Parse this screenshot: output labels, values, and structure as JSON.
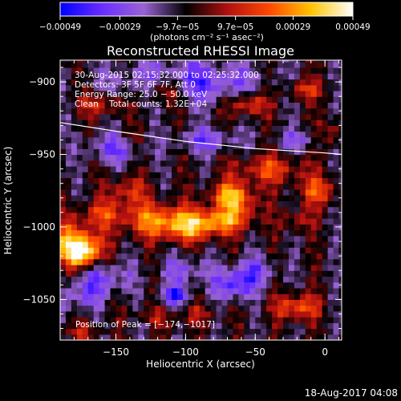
{
  "chart_data": {
    "type": "heatmap",
    "title": "Reconstructed RHESSI Image",
    "xlabel": "Heliocentric X (arcsec)",
    "ylabel": "Heliocentric Y (arcsec)",
    "xlim": [
      -190,
      12
    ],
    "ylim": [
      -1078,
      -885
    ],
    "x_ticks": [
      -150,
      -100,
      -50,
      0
    ],
    "x_tick_labels": [
      "−150",
      "−100",
      "−50",
      "0"
    ],
    "y_ticks": [
      -900,
      -950,
      -1000,
      -1050
    ],
    "y_tick_labels": [
      "−900",
      "−950",
      "−1000",
      "−1050"
    ],
    "colorbar": {
      "range": [
        -0.00049,
        0.00049
      ],
      "ticks": [
        -0.00049,
        -0.00029,
        -9.7e-05,
        9.7e-05,
        0.00029,
        0.00049
      ],
      "tick_labels": [
        "−0.00049",
        "−0.00029",
        "−9.7e−05",
        "9.7e−05",
        "0.00029",
        "0.00049"
      ],
      "units": "(photons cm⁻² s⁻¹ asec⁻²)",
      "colors": [
        "#0000ff",
        "#6a2dff",
        "#9a63d4",
        "#000000",
        "#b01010",
        "#ff4800",
        "#ffc400",
        "#ffffff"
      ]
    },
    "annotations": [
      "30‑Aug‑2015 02:15:32.000 to 02:25:32.000",
      "Detectors: 3F 5F 6F 7F, Att 0",
      "Energy Range: 25.0 − 50.0 keV",
      "Clean    Total counts: 1.32E+04"
    ],
    "peak_label": "Position of Peak = [−174,−1017]",
    "peak": {
      "x": -174,
      "y": -1017
    },
    "limb_curve": {
      "x": [
        -190,
        -150,
        -100,
        -50,
        0,
        12
      ],
      "y": [
        -928,
        -934,
        -941,
        -946,
        -949,
        -950
      ]
    },
    "hot_regions": [
      {
        "x": -174,
        "y": -1017,
        "w": 12,
        "h": 10,
        "v": 0.00049
      },
      {
        "x": -182,
        "y": -1010,
        "w": 20,
        "h": 16,
        "v": 0.0003
      },
      {
        "x": -120,
        "y": -995,
        "w": 28,
        "h": 12,
        "v": 0.00032
      },
      {
        "x": -95,
        "y": -1000,
        "w": 22,
        "h": 10,
        "v": 0.00028
      },
      {
        "x": -75,
        "y": -995,
        "w": 18,
        "h": 8,
        "v": 0.00025
      },
      {
        "x": -60,
        "y": -985,
        "w": 14,
        "h": 14,
        "v": 0.00022
      },
      {
        "x": -70,
        "y": -978,
        "w": 14,
        "h": 9,
        "v": 0.0003
      },
      {
        "x": -142,
        "y": -975,
        "w": 14,
        "h": 10,
        "v": 0.00022
      },
      {
        "x": -160,
        "y": -990,
        "w": 16,
        "h": 8,
        "v": 0.00018
      },
      {
        "x": -40,
        "y": -960,
        "w": 25,
        "h": 10,
        "v": 0.00024
      },
      {
        "x": -5,
        "y": -975,
        "w": 14,
        "h": 10,
        "v": 0.00026
      },
      {
        "x": -20,
        "y": -995,
        "w": 12,
        "h": 8,
        "v": 0.00016
      },
      {
        "x": -115,
        "y": -905,
        "w": 16,
        "h": 10,
        "v": 0.00032
      },
      {
        "x": -160,
        "y": -915,
        "w": 16,
        "h": 8,
        "v": 0.00022
      },
      {
        "x": -55,
        "y": -915,
        "w": 14,
        "h": 8,
        "v": 0.00028
      },
      {
        "x": -15,
        "y": -905,
        "w": 14,
        "h": 7,
        "v": 0.00022
      },
      {
        "x": -20,
        "y": -1055,
        "w": 16,
        "h": 9,
        "v": 0.0003
      },
      {
        "x": -125,
        "y": -1065,
        "w": 18,
        "h": 8,
        "v": 0.00018
      },
      {
        "x": -90,
        "y": -1060,
        "w": 14,
        "h": 7,
        "v": 0.00012
      },
      {
        "x": -175,
        "y": -1072,
        "w": 16,
        "h": 6,
        "v": 0.00014
      },
      {
        "x": -140,
        "y": -940,
        "w": 12,
        "h": 8,
        "v": 0.00012
      },
      {
        "x": 5,
        "y": -935,
        "w": 8,
        "h": 10,
        "v": 0.00016
      }
    ],
    "cold_regions": [
      {
        "x": -100,
        "y": -900,
        "w": 50,
        "h": 14,
        "v": -0.0003
      },
      {
        "x": -150,
        "y": -945,
        "w": 20,
        "h": 10,
        "v": -0.00025
      },
      {
        "x": -85,
        "y": -940,
        "w": 22,
        "h": 8,
        "v": -0.00022
      },
      {
        "x": -160,
        "y": -1035,
        "w": 20,
        "h": 12,
        "v": -0.00022
      },
      {
        "x": -65,
        "y": -1040,
        "w": 14,
        "h": 10,
        "v": -0.0003
      },
      {
        "x": -50,
        "y": -1030,
        "w": 16,
        "h": 10,
        "v": -0.0002
      },
      {
        "x": -108,
        "y": -1047,
        "w": 10,
        "h": 6,
        "v": -0.00035
      },
      {
        "x": -100,
        "y": -1030,
        "w": 18,
        "h": 10,
        "v": -0.00018
      },
      {
        "x": -175,
        "y": -1048,
        "w": 14,
        "h": 10,
        "v": -0.00018
      },
      {
        "x": -20,
        "y": -940,
        "w": 16,
        "h": 7,
        "v": -0.00016
      },
      {
        "x": -130,
        "y": -1068,
        "w": 14,
        "h": 6,
        "v": -0.00015
      }
    ]
  },
  "footer": {
    "timestamp": "18‑Aug‑2017 04:08"
  }
}
